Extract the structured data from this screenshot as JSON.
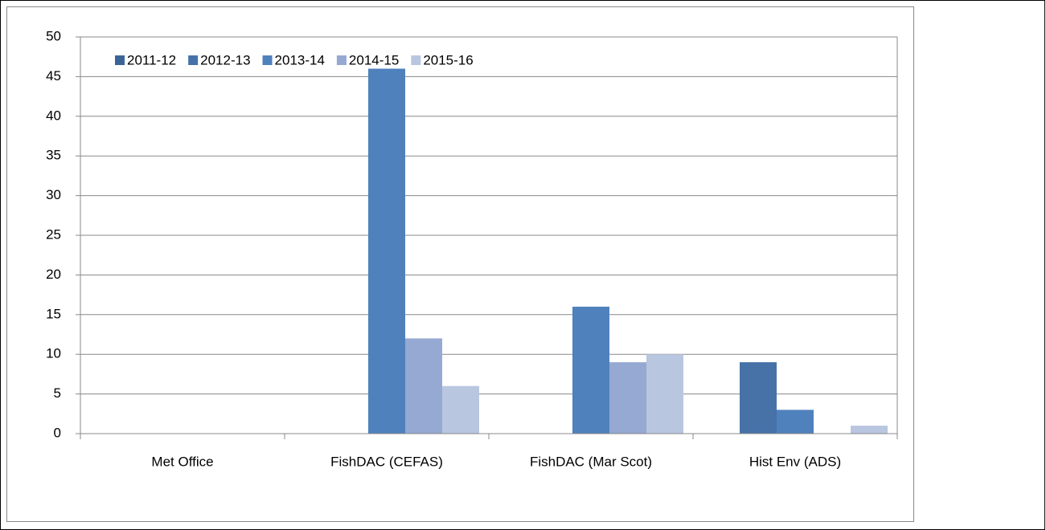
{
  "chart_data": {
    "type": "bar",
    "categories": [
      "Met Office",
      "FishDAC (CEFAS)",
      "FishDAC (Mar Scot)",
      "Hist Env (ADS)"
    ],
    "series": [
      {
        "name": "2011-12",
        "color": "#3b6496",
        "values": [
          0,
          0,
          0,
          0
        ]
      },
      {
        "name": "2012-13",
        "color": "#4672a8",
        "values": [
          0,
          0,
          0,
          9
        ]
      },
      {
        "name": "2013-14",
        "color": "#4f81bd",
        "values": [
          0,
          46,
          16,
          3
        ]
      },
      {
        "name": "2014-15",
        "color": "#95a9d2",
        "values": [
          0,
          12,
          9,
          0
        ]
      },
      {
        "name": "2015-16",
        "color": "#b9c6e0",
        "values": [
          0,
          6,
          10,
          1
        ]
      }
    ],
    "ylim": [
      0,
      50
    ],
    "yticks": [
      0,
      5,
      10,
      15,
      20,
      25,
      30,
      35,
      40,
      45,
      50
    ],
    "grid": true,
    "legend": "top-left"
  }
}
